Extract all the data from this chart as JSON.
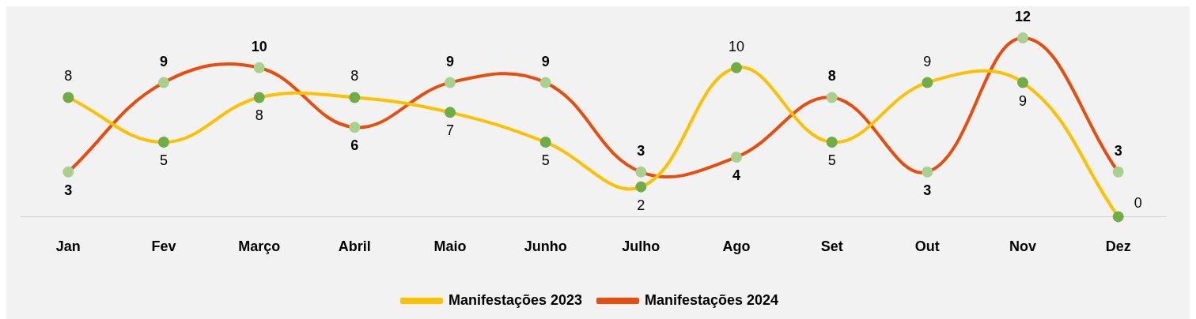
{
  "chart_data": {
    "type": "line",
    "categories": [
      "Jan",
      "Fev",
      "Março",
      "Abril",
      "Maio",
      "Junho",
      "Julho",
      "Ago",
      "Set",
      "Out",
      "Nov",
      "Dez"
    ],
    "series": [
      {
        "name": "Manifestações 2023",
        "color": "#ffc000",
        "colors": [
          "#70ad47",
          "#70ad47",
          "#70ad47",
          "#70ad47",
          "#70ad47",
          "#70ad47",
          "#70ad47",
          "#70ad47",
          "#70ad47",
          "#70ad47",
          "#70ad47",
          "#70ad47"
        ],
        "values": [
          8,
          5,
          8,
          8,
          7,
          5,
          2,
          10,
          5,
          9,
          9,
          0
        ]
      },
      {
        "name": "Manifestações 2024",
        "color": "#e84c0e",
        "colors": [
          "#a9d18e",
          "#a9d18e",
          "#a9d18e",
          "#a9d18e",
          "#a9d18e",
          "#a9d18e",
          "#a9d18e",
          "#a9d18e",
          "#a9d18e",
          "#a9d18e",
          "#a9d18e",
          "#a9d18e"
        ],
        "values": [
          3,
          9,
          10,
          6,
          9,
          9,
          3,
          4,
          8,
          3,
          12,
          3
        ]
      }
    ],
    "tick_labels": "x",
    "data_labels": true,
    "legend": "bottom",
    "marker": "circle",
    "grid": false
  }
}
